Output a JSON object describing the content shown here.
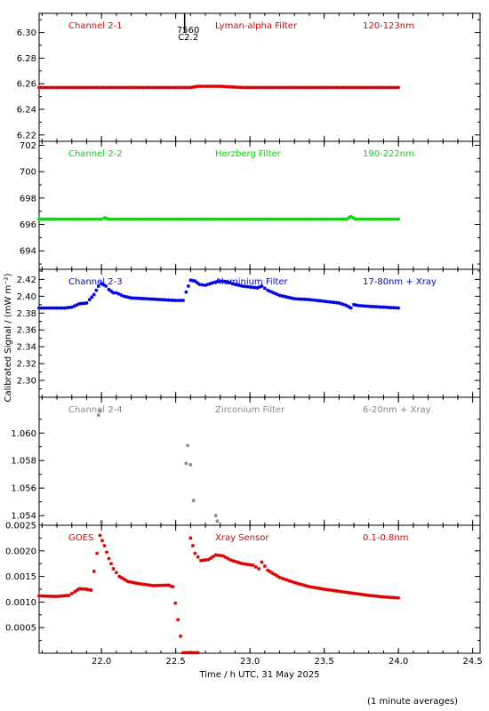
{
  "chart_data": {
    "type": "scatter",
    "ylabel": "Calibrated Signal / (mW m⁻²)",
    "xlabel": "Time / h UTC, 31 May 2025",
    "footnote": "(1 minute averages)",
    "xlim": [
      21.58,
      24.55
    ],
    "xticks": [
      "22.0",
      "22.5",
      "23.0",
      "23.5",
      "24.0",
      "24.5"
    ],
    "xtick_values": [
      22.0,
      22.5,
      23.0,
      23.5,
      24.0,
      24.5
    ],
    "marker": {
      "x": 22.56,
      "line1": "7560",
      "line2": "C2.2"
    },
    "panels": [
      {
        "name": "Channel 2-1",
        "filter": "Lyman-alpha Filter",
        "range": "120-123nm",
        "color": "#dd0000",
        "ylim": [
          6.215,
          6.315
        ],
        "yticks": [
          "6.22",
          "6.24",
          "6.26",
          "6.28",
          "6.30"
        ],
        "ytick_values": [
          6.22,
          6.24,
          6.26,
          6.28,
          6.3
        ],
        "series": [
          [
            21.58,
            6.257
          ],
          [
            22.3,
            6.257
          ],
          [
            22.6,
            6.257
          ],
          [
            22.65,
            6.258
          ],
          [
            22.8,
            6.258
          ],
          [
            22.95,
            6.257
          ],
          [
            23.5,
            6.257
          ],
          [
            24.0,
            6.257
          ]
        ]
      },
      {
        "name": "Channel 2-2",
        "filter": "Herzberg Filter",
        "range": "190-222nm",
        "color": "#00dd00",
        "ylim": [
          692.6,
          702.3
        ],
        "yticks": [
          "694",
          "696",
          "698",
          "700",
          "702"
        ],
        "ytick_values": [
          694,
          696,
          698,
          700,
          702
        ],
        "series": [
          [
            21.58,
            696.4
          ],
          [
            22.0,
            696.4
          ],
          [
            22.02,
            696.5
          ],
          [
            22.05,
            696.4
          ],
          [
            23.0,
            696.4
          ],
          [
            23.65,
            696.4
          ],
          [
            23.68,
            696.6
          ],
          [
            23.71,
            696.4
          ],
          [
            24.0,
            696.4
          ]
        ]
      },
      {
        "name": "Channel 2-3",
        "filter": "Aluminium Filter",
        "range": "17-80nm + Xray",
        "color": "#0000dd",
        "ylim": [
          2.28,
          2.432
        ],
        "yticks": [
          "2.30",
          "2.32",
          "2.34",
          "2.36",
          "2.38",
          "2.40",
          "2.42"
        ],
        "ytick_values": [
          2.3,
          2.32,
          2.34,
          2.36,
          2.38,
          2.4,
          2.42
        ],
        "series": [
          [
            21.58,
            2.386
          ],
          [
            21.75,
            2.386
          ],
          [
            21.8,
            2.387
          ],
          [
            21.85,
            2.391
          ],
          [
            21.9,
            2.392
          ],
          [
            21.92,
            2.396
          ],
          [
            21.95,
            2.402
          ],
          [
            21.98,
            2.412
          ],
          [
            22.0,
            2.415
          ],
          [
            22.03,
            2.412
          ],
          [
            22.05,
            2.408
          ],
          [
            22.08,
            2.404
          ],
          [
            22.1,
            2.404
          ],
          [
            22.15,
            2.4
          ],
          [
            22.2,
            2.398
          ],
          [
            22.3,
            2.397
          ],
          [
            22.4,
            2.396
          ],
          [
            22.5,
            2.395
          ],
          [
            22.55,
            2.395
          ],
          [
            22.57,
            2.405
          ],
          [
            22.6,
            2.419
          ],
          [
            22.63,
            2.418
          ],
          [
            22.66,
            2.414
          ],
          [
            22.7,
            2.413
          ],
          [
            22.75,
            2.416
          ],
          [
            22.8,
            2.418
          ],
          [
            22.85,
            2.417
          ],
          [
            22.9,
            2.414
          ],
          [
            22.95,
            2.412
          ],
          [
            23.0,
            2.411
          ],
          [
            23.05,
            2.41
          ],
          [
            23.08,
            2.412
          ],
          [
            23.12,
            2.407
          ],
          [
            23.2,
            2.401
          ],
          [
            23.3,
            2.397
          ],
          [
            23.4,
            2.396
          ],
          [
            23.5,
            2.394
          ],
          [
            23.6,
            2.392
          ],
          [
            23.65,
            2.389
          ],
          [
            23.68,
            2.386
          ],
          [
            23.7,
            2.39
          ],
          [
            23.73,
            2.389
          ],
          [
            23.8,
            2.388
          ],
          [
            23.9,
            2.387
          ],
          [
            24.0,
            2.386
          ]
        ]
      },
      {
        "name": "Channel 2-4",
        "filter": "Zirconium Filter",
        "range": "6-20nm + Xray",
        "color": "#888888",
        "ylim": [
          1.0533,
          1.0626
        ],
        "yticks": [
          "1.054",
          "1.056",
          "1.058",
          "1.060"
        ],
        "ytick_values": [
          1.054,
          1.056,
          1.058,
          1.06
        ],
        "series": [
          [
            21.98,
            1.0613
          ],
          [
            21.99,
            1.0616
          ],
          [
            22.0,
            1.0535
          ],
          [
            22.57,
            1.0578
          ],
          [
            22.58,
            1.0591
          ],
          [
            22.6,
            1.0577
          ],
          [
            22.62,
            1.0551
          ],
          [
            22.77,
            1.054
          ],
          [
            22.78,
            1.0536
          ]
        ]
      },
      {
        "name": "GOES",
        "filter": "Xray Sensor",
        "range": "0.1-0.8nm",
        "color": "#dd0000",
        "ylim": [
          0.0,
          0.0025
        ],
        "yticks": [
          "0.0005",
          "0.0010",
          "0.0015",
          "0.0020",
          "0.0025"
        ],
        "ytick_values": [
          0.0005,
          0.001,
          0.0015,
          0.002,
          0.0025
        ],
        "series": [
          [
            21.58,
            0.00112
          ],
          [
            21.7,
            0.00111
          ],
          [
            21.78,
            0.00113
          ],
          [
            21.82,
            0.0012
          ],
          [
            21.85,
            0.00126
          ],
          [
            21.9,
            0.00125
          ],
          [
            21.93,
            0.00123
          ],
          [
            21.95,
            0.0016
          ],
          [
            21.97,
            0.00195
          ],
          [
            21.99,
            0.0023
          ],
          [
            22.02,
            0.0021
          ],
          [
            22.05,
            0.00185
          ],
          [
            22.08,
            0.00165
          ],
          [
            22.12,
            0.0015
          ],
          [
            22.18,
            0.0014
          ],
          [
            22.25,
            0.00136
          ],
          [
            22.35,
            0.00132
          ],
          [
            22.45,
            0.00133
          ],
          [
            22.48,
            0.0013
          ],
          [
            22.55,
            1e-05
          ],
          [
            22.65,
            1e-05
          ],
          [
            22.6,
            0.00225
          ],
          [
            22.63,
            0.00195
          ],
          [
            22.67,
            0.00181
          ],
          [
            22.72,
            0.00183
          ],
          [
            22.77,
            0.00192
          ],
          [
            22.82,
            0.0019
          ],
          [
            22.87,
            0.00182
          ],
          [
            22.95,
            0.00175
          ],
          [
            23.02,
            0.00172
          ],
          [
            23.06,
            0.00165
          ],
          [
            23.08,
            0.00178
          ],
          [
            23.12,
            0.00162
          ],
          [
            23.2,
            0.00148
          ],
          [
            23.3,
            0.00138
          ],
          [
            23.4,
            0.0013
          ],
          [
            23.5,
            0.00125
          ],
          [
            23.6,
            0.00121
          ],
          [
            23.7,
            0.00117
          ],
          [
            23.8,
            0.00113
          ],
          [
            23.9,
            0.0011
          ],
          [
            24.0,
            0.00108
          ]
        ]
      }
    ]
  }
}
